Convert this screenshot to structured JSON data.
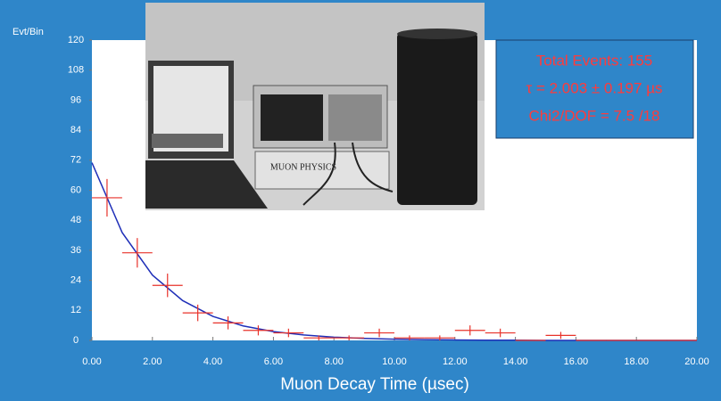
{
  "chart_data": {
    "type": "errorbar",
    "ylabel": "Evt/Bin",
    "xlabel": "Muon Decay Time (µsec)",
    "x": [
      0.5,
      1.5,
      2.5,
      3.5,
      4.5,
      5.5,
      6.5,
      7.5,
      8.5,
      9.5,
      10.5,
      11.5,
      12.5,
      13.5,
      14.5,
      15.5,
      16.5,
      17.5,
      18.5,
      19.5
    ],
    "values": [
      57,
      35,
      22,
      11,
      7,
      4,
      3,
      1,
      1,
      3,
      1,
      1,
      4,
      3,
      0,
      2,
      0,
      0,
      0,
      0
    ],
    "errors": [
      7.5,
      5.9,
      4.7,
      3.3,
      2.6,
      2,
      1.7,
      1,
      1,
      1.7,
      1,
      1,
      2,
      1.7,
      0,
      1.4,
      0,
      0,
      0,
      0
    ],
    "bin_width": 1,
    "color": "#e8322a",
    "fit": {
      "color": "#1f2fb8",
      "x": [
        0,
        1,
        2,
        3,
        4,
        5,
        6,
        7,
        8,
        9,
        10,
        11,
        12,
        13,
        14,
        15,
        16,
        17,
        18,
        19,
        20
      ],
      "values": [
        71,
        43.1,
        26.1,
        15.9,
        9.6,
        5.8,
        3.5,
        2.2,
        1.3,
        0.8,
        0.5,
        0.3,
        0.2,
        0.1,
        0.1,
        0,
        0,
        0,
        0,
        0,
        0
      ]
    },
    "xlim": [
      0,
      20
    ],
    "ylim": [
      0,
      120
    ],
    "xticks": [
      {
        "value": 0,
        "label": "0.00"
      },
      {
        "value": 2,
        "label": "2.00"
      },
      {
        "value": 4,
        "label": "4.00"
      },
      {
        "value": 6,
        "label": "6.00"
      },
      {
        "value": 8,
        "label": "8.00"
      },
      {
        "value": 10,
        "label": "10.00"
      },
      {
        "value": 12,
        "label": "12.00"
      },
      {
        "value": 14,
        "label": "14.00"
      },
      {
        "value": 16,
        "label": "16.00"
      },
      {
        "value": 18,
        "label": "18.00"
      },
      {
        "value": 20,
        "label": "20.00"
      }
    ],
    "yticks": [
      0,
      12,
      24,
      36,
      48,
      60,
      72,
      84,
      96,
      108,
      120
    ],
    "info_box": [
      "Total Events: 155",
      "τ = 2.003 ± 0.197 µs",
      "Chi2/DOF = 7.5 /18"
    ],
    "photo_text": "MUON PHYSICS"
  }
}
